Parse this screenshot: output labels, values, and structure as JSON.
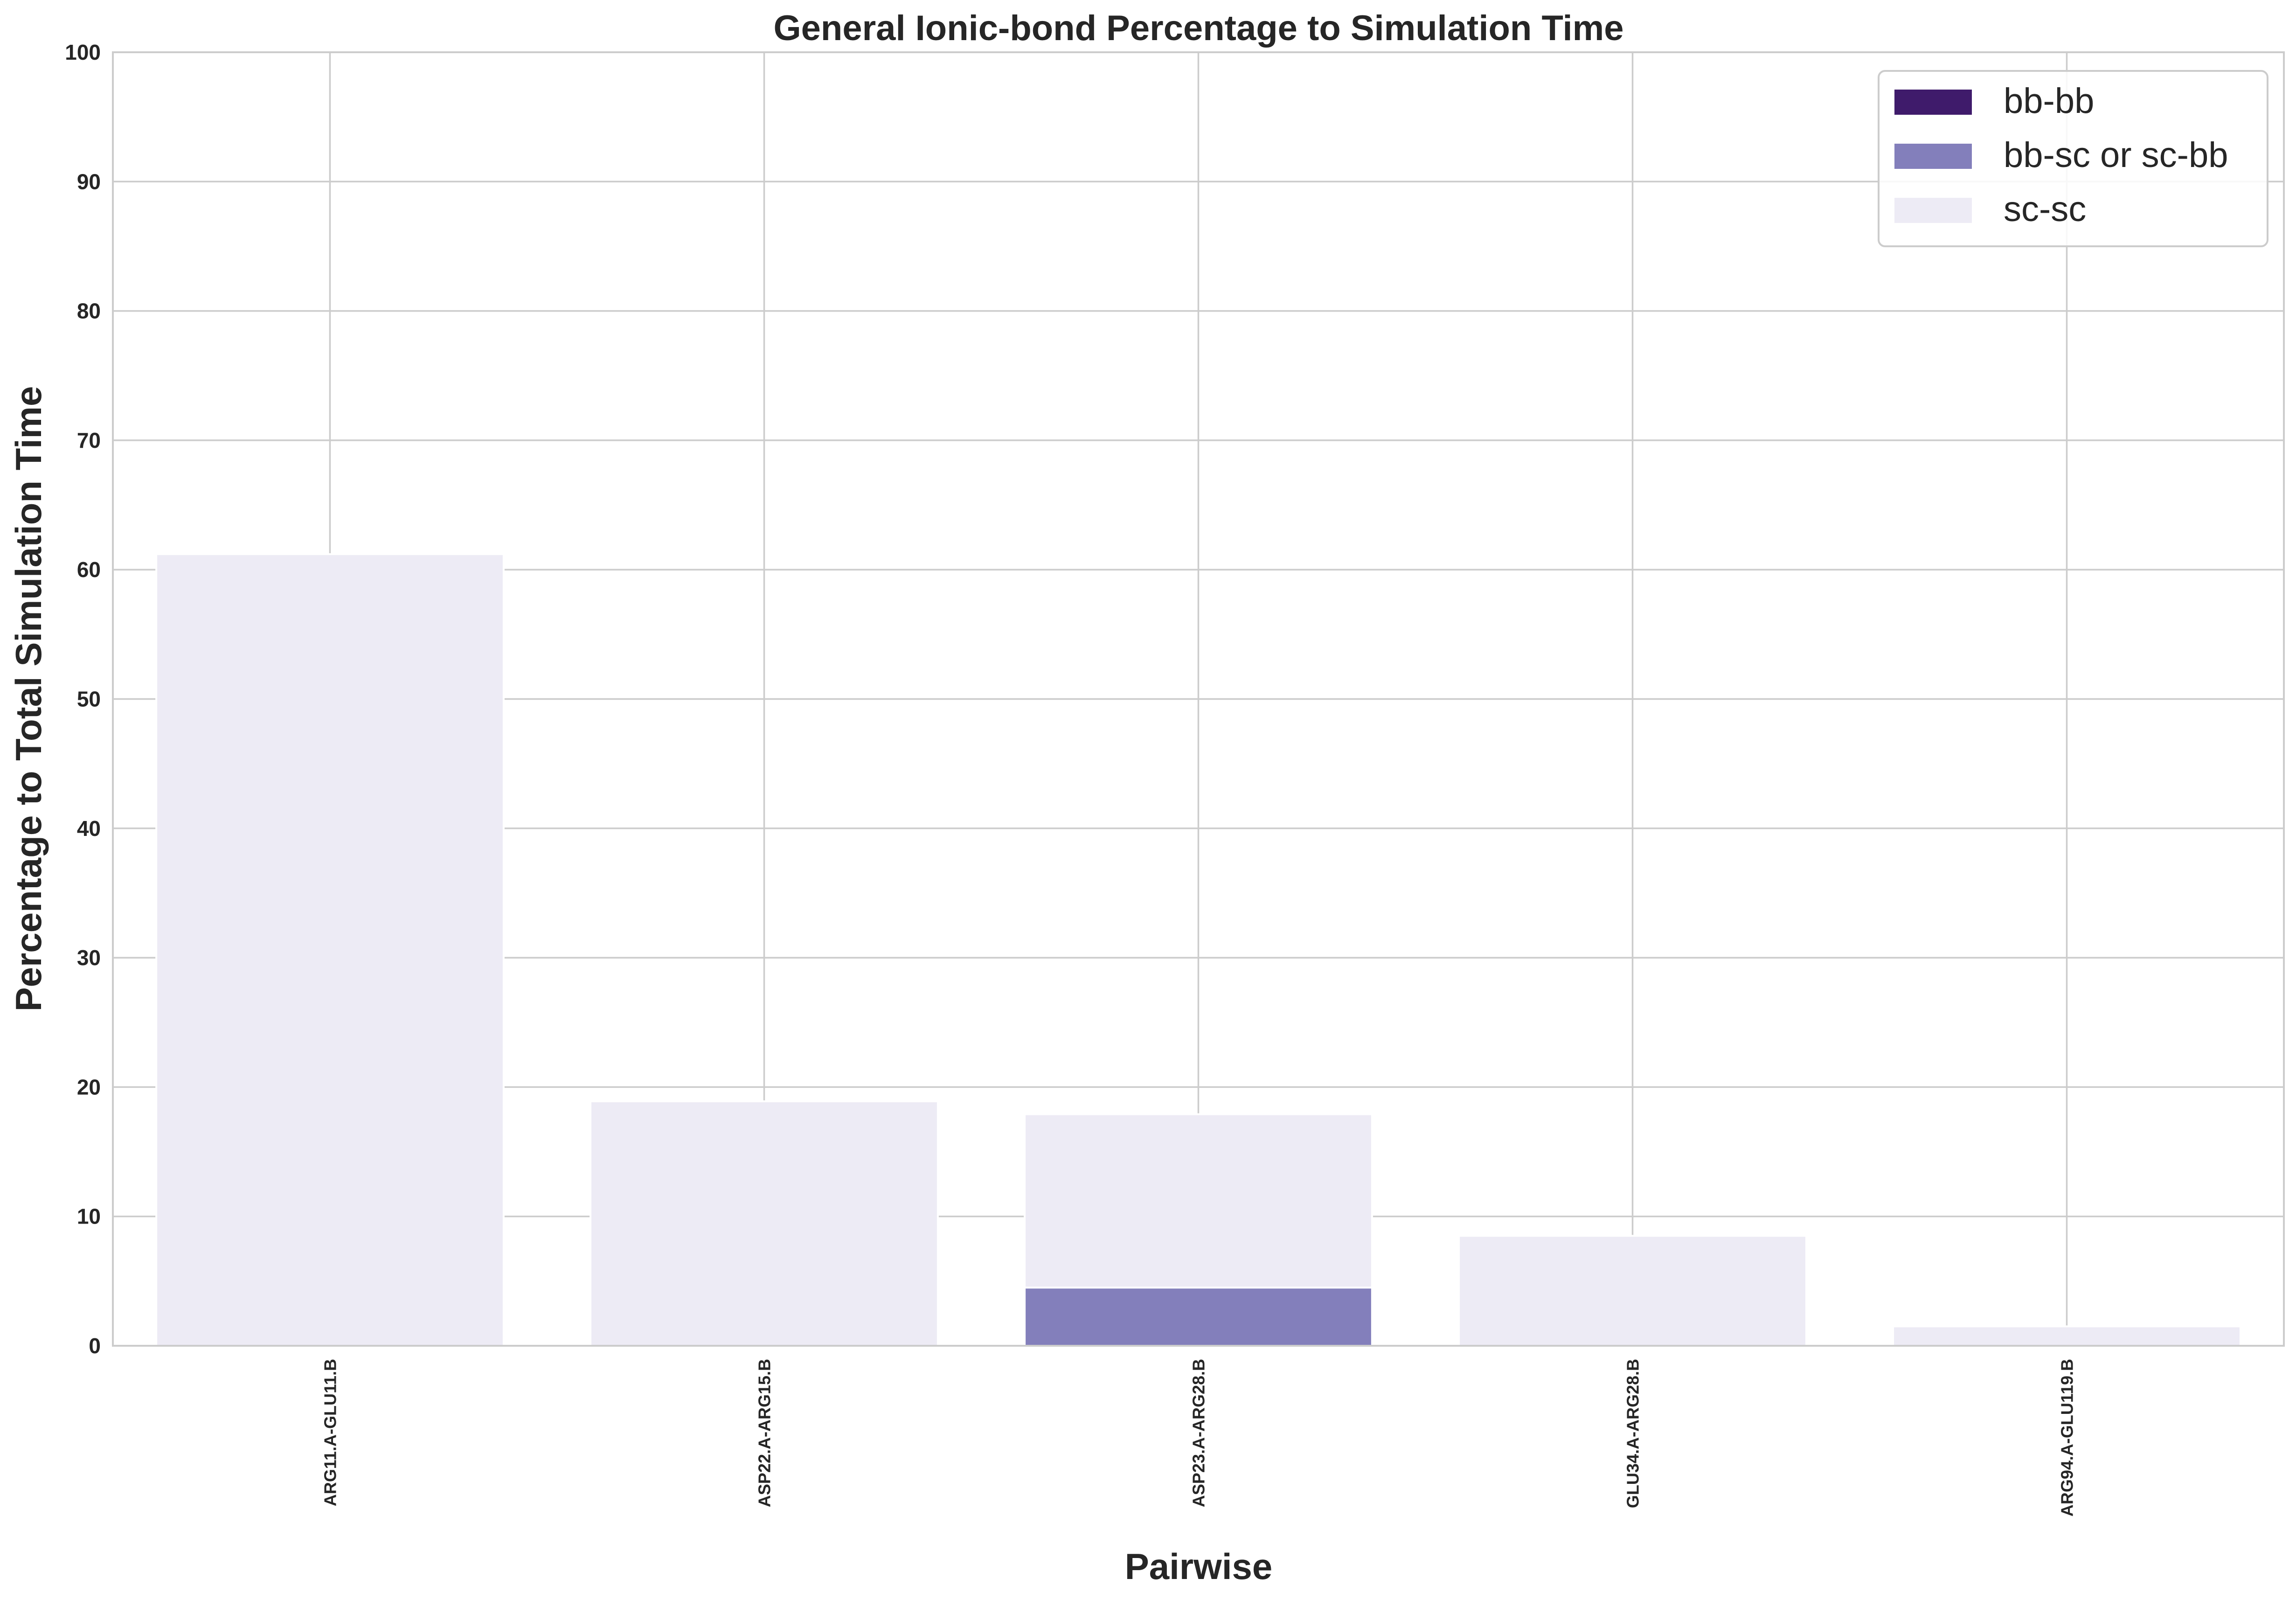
{
  "chart_data": {
    "type": "bar",
    "stacked": true,
    "title": "General Ionic-bond Percentage to Simulation Time",
    "xlabel": "Pairwise",
    "ylabel": "Percentage to Total Simulation Time",
    "ylim": [
      0,
      100
    ],
    "yticks": [
      0,
      10,
      20,
      30,
      40,
      50,
      60,
      70,
      80,
      90,
      100
    ],
    "grid": true,
    "legend_position": "top-right",
    "categories": [
      "ARG11.A-GLU11.B",
      "ASP22.A-ARG15.B",
      "ASP23.A-ARG28.B",
      "GLU34.A-ARG28.B",
      "ARG94.A-GLU119.B"
    ],
    "series": [
      {
        "name": "bb-bb",
        "color": "#3f1b6b",
        "values": [
          0,
          0,
          0,
          0,
          0
        ]
      },
      {
        "name": "bb-sc or sc-bb",
        "color": "#837fbb",
        "values": [
          0,
          0,
          4.5,
          0,
          0
        ]
      },
      {
        "name": "sc-sc",
        "color": "#edebf5",
        "values": [
          61.2,
          18.9,
          13.4,
          8.5,
          1.5
        ]
      }
    ]
  }
}
